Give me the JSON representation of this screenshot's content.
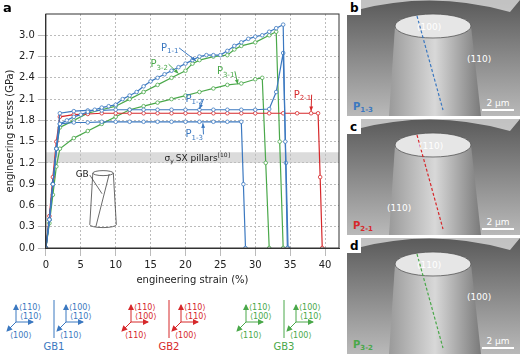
{
  "chart_data": {
    "type": "line",
    "panel": "a",
    "x_label": "engineering strain (%)",
    "y_label": "engineering stress (GPa)",
    "xlim": [
      0,
      42
    ],
    "xticks": [
      0,
      5,
      10,
      15,
      20,
      25,
      30,
      35,
      40
    ],
    "ylim": [
      0,
      3.3
    ],
    "yticks": [
      {
        "value": 0,
        "label": "0.0"
      },
      {
        "value": 0.3,
        "label": "0.3"
      },
      {
        "value": 0.6,
        "label": "0.6"
      },
      {
        "value": 0.9,
        "label": "0.9"
      },
      {
        "value": 1.2,
        "label": "1.2"
      },
      {
        "value": 1.5,
        "label": "1.5"
      },
      {
        "value": 1.8,
        "label": "1.8"
      },
      {
        "value": 2.1,
        "label": "2.1"
      },
      {
        "value": 2.4,
        "label": "2.4"
      },
      {
        "value": 2.7,
        "label": "2.7"
      },
      {
        "value": 3.0,
        "label": "3.0"
      }
    ],
    "grid": true,
    "band": {
      "range": [
        1.2,
        1.35
      ],
      "symbol": "σ",
      "sub": "y",
      "text": "SX pillars",
      "sup": "[10]"
    },
    "inset_label": "GB",
    "series": [
      {
        "name": "P1-1",
        "color": "#3b78c0",
        "marker": "circle",
        "label_xy": [
          16.5,
          2.78
        ],
        "arrow_to": [
          21.5,
          2.64
        ],
        "x": [
          0,
          0.5,
          1,
          1.5,
          2,
          3,
          4,
          5,
          6,
          7,
          8,
          9,
          10,
          11,
          12,
          13,
          14,
          15,
          16,
          17,
          18,
          19,
          20,
          21,
          22,
          23,
          24,
          25,
          26,
          27,
          28,
          29,
          30,
          31,
          32,
          33,
          34,
          34.3,
          34.6
        ],
        "values": [
          0,
          0.4,
          0.9,
          1.4,
          1.75,
          1.8,
          1.85,
          1.88,
          1.92,
          1.95,
          1.98,
          2.0,
          2.02,
          2.1,
          2.15,
          2.2,
          2.28,
          2.35,
          2.4,
          2.45,
          2.5,
          2.55,
          2.6,
          2.65,
          2.7,
          2.72,
          2.72,
          2.72,
          2.78,
          2.85,
          2.9,
          2.95,
          2.98,
          3.0,
          3.05,
          3.1,
          3.15,
          1.5,
          0
        ]
      },
      {
        "name": "P1-2",
        "color": "#3b78c0",
        "marker": "circle",
        "label_xy": [
          20,
          2.06
        ],
        "arrow_to": [
          22,
          1.96
        ],
        "x": [
          0,
          0.5,
          1,
          1.5,
          2,
          4,
          6,
          8,
          10,
          12,
          14,
          16,
          18,
          20,
          22,
          24,
          26,
          28,
          30,
          32,
          33,
          34,
          34.4,
          34.7
        ],
        "values": [
          0,
          0.4,
          0.9,
          1.4,
          1.9,
          1.93,
          1.94,
          1.94,
          1.95,
          1.95,
          1.95,
          1.95,
          1.95,
          1.95,
          1.95,
          1.95,
          1.95,
          1.95,
          1.95,
          1.96,
          2.2,
          2.75,
          1.2,
          0
        ]
      },
      {
        "name": "P1-3",
        "color": "#3b78c0",
        "marker": "circle",
        "label_xy": [
          20,
          1.56
        ],
        "arrow_to": [
          22.5,
          1.76
        ],
        "x": [
          0,
          0.5,
          1,
          1.5,
          2,
          4,
          6,
          8,
          10,
          12,
          14,
          16,
          18,
          20,
          22,
          24,
          26,
          28,
          28.3,
          28.6
        ],
        "values": [
          0,
          0.4,
          0.9,
          1.4,
          1.75,
          1.77,
          1.77,
          1.78,
          1.78,
          1.78,
          1.78,
          1.78,
          1.78,
          1.78,
          1.78,
          1.78,
          1.78,
          1.78,
          0.9,
          0
        ]
      },
      {
        "name": "P2-1",
        "color": "#d6282b",
        "marker": "circle",
        "label_xy": [
          35.5,
          2.12
        ],
        "arrow_to": [
          38,
          1.93
        ],
        "x": [
          0,
          0.5,
          1,
          1.5,
          2,
          4,
          6,
          8,
          10,
          12,
          14,
          16,
          18,
          20,
          22,
          24,
          26,
          28,
          30,
          32,
          34,
          36,
          38,
          39,
          39.3,
          39.6
        ],
        "values": [
          0,
          0.45,
          1.0,
          1.5,
          1.85,
          1.88,
          1.89,
          1.9,
          1.9,
          1.9,
          1.9,
          1.9,
          1.9,
          1.9,
          1.9,
          1.9,
          1.9,
          1.9,
          1.9,
          1.9,
          1.9,
          1.9,
          1.9,
          1.9,
          1.0,
          0
        ]
      },
      {
        "name": "P3-1",
        "color": "#4aa84a",
        "marker": "circle",
        "label_xy": [
          24.5,
          2.45
        ],
        "arrow_to": [
          27.5,
          2.31
        ],
        "x": [
          0,
          0.5,
          1,
          1.5,
          2,
          4,
          6,
          8,
          10,
          12,
          14,
          16,
          18,
          20,
          22,
          24,
          26,
          28,
          30,
          31,
          31.5,
          32
        ],
        "values": [
          0,
          0.35,
          0.75,
          1.15,
          1.4,
          1.55,
          1.65,
          1.75,
          1.85,
          1.95,
          2.0,
          2.05,
          2.1,
          2.15,
          2.2,
          2.25,
          2.3,
          2.32,
          2.38,
          2.4,
          1.2,
          0
        ]
      },
      {
        "name": "P3-2",
        "color": "#4aa84a",
        "marker": "circle",
        "label_xy": [
          15,
          2.55
        ],
        "arrow_to": [
          19,
          2.46
        ],
        "x": [
          0,
          0.5,
          1,
          1.5,
          2,
          4,
          6,
          8,
          10,
          12,
          14,
          16,
          18,
          20,
          21,
          22,
          24,
          26,
          27,
          28,
          30,
          32,
          33,
          33.5,
          34
        ],
        "values": [
          0,
          0.4,
          0.9,
          1.4,
          1.7,
          1.8,
          1.9,
          1.95,
          2.0,
          2.1,
          2.2,
          2.3,
          2.4,
          2.5,
          2.6,
          2.65,
          2.7,
          2.72,
          2.8,
          2.85,
          2.9,
          3.0,
          3.05,
          1.5,
          0
        ]
      }
    ]
  },
  "orientations": [
    {
      "name": "GB1",
      "color": "#3b78c0",
      "grains": [
        {
          "up": "⟨110⟩",
          "right": "⟨110⟩",
          "down": "⟨100⟩"
        },
        {
          "up": "⟨100⟩",
          "right": "⟨110⟩",
          "down": "⟨110⟩"
        }
      ]
    },
    {
      "name": "GB2",
      "color": "#d6282b",
      "grains": [
        {
          "up": "⟨110⟩",
          "right": "⟨100⟩",
          "down": "⟨110⟩"
        },
        {
          "up": "⟨110⟩",
          "right": "⟨110⟩",
          "down": "⟨100⟩"
        }
      ]
    },
    {
      "name": "GB3",
      "color": "#4aa84a",
      "grains": [
        {
          "up": "⟨110⟩",
          "right": "⟨100⟩",
          "down": "⟨110⟩"
        },
        {
          "up": "⟨100⟩",
          "right": "⟨110⟩",
          "down": "⟨100⟩"
        }
      ]
    }
  ],
  "micrographs": [
    {
      "letter": "b",
      "facets": [
        "(100)",
        "(110)"
      ],
      "pillar": "P1-3",
      "color": "#3b78c0",
      "scale_bar": "2 µm"
    },
    {
      "letter": "c",
      "facets": [
        "(110)",
        "(110)"
      ],
      "pillar": "P2-1",
      "color": "#d6282b",
      "scale_bar": "2 µm"
    },
    {
      "letter": "d",
      "facets": [
        "(110)",
        "(100)"
      ],
      "pillar": "P3-2",
      "color": "#4aa84a",
      "scale_bar": "2 µm"
    }
  ]
}
